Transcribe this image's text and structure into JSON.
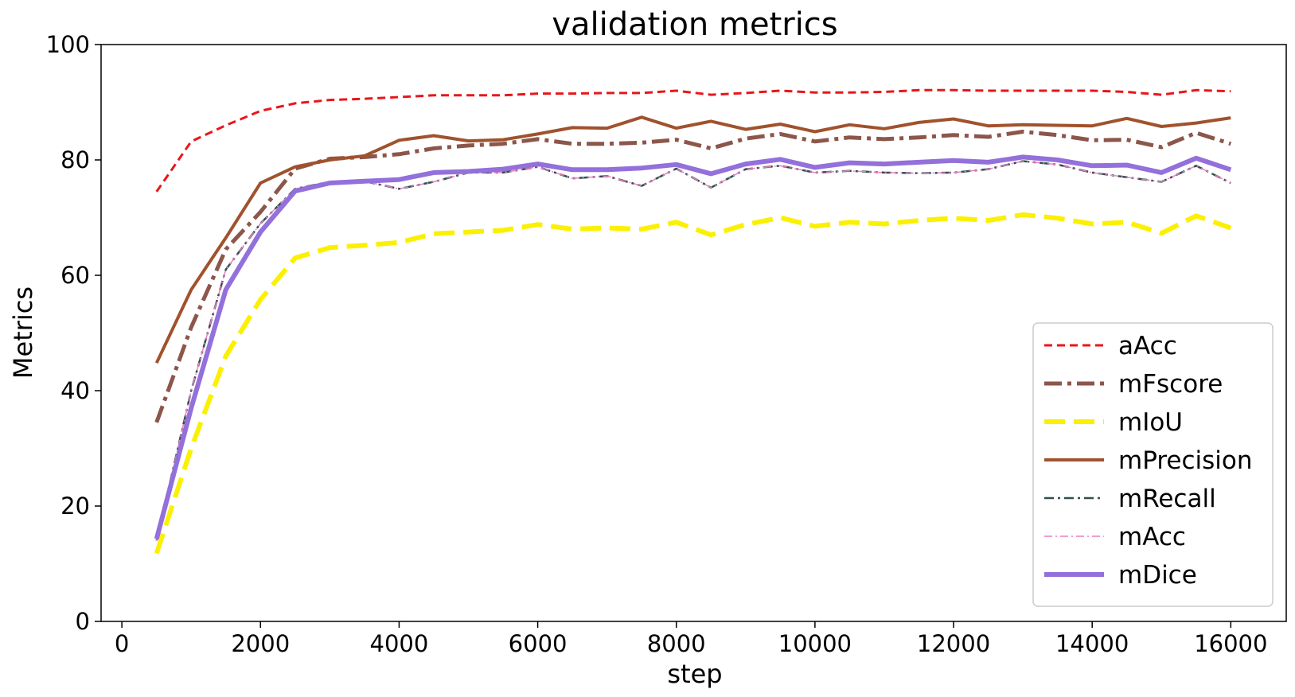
{
  "chart_data": {
    "type": "line",
    "title": "validation metrics",
    "xlabel": "step",
    "ylabel": "Metrics",
    "xlim": [
      -300,
      16800
    ],
    "ylim": [
      0,
      100
    ],
    "xticks": [
      0,
      2000,
      4000,
      6000,
      8000,
      10000,
      12000,
      14000,
      16000
    ],
    "yticks": [
      0,
      20,
      40,
      60,
      80,
      100
    ],
    "grid": false,
    "legend_position": "lower-right",
    "x": [
      500,
      1000,
      1500,
      2000,
      2500,
      3000,
      3500,
      4000,
      4500,
      5000,
      5500,
      6000,
      6500,
      7000,
      7500,
      8000,
      8500,
      9000,
      9500,
      10000,
      10500,
      11000,
      11500,
      12000,
      12500,
      13000,
      13500,
      14000,
      14500,
      15000,
      15500,
      16000
    ],
    "series": [
      {
        "name": "aAcc",
        "color": "#e8161b",
        "width": 3,
        "dash": "10,6",
        "values": [
          74.5,
          83.2,
          86.0,
          88.5,
          89.8,
          90.4,
          90.6,
          90.9,
          91.2,
          91.2,
          91.2,
          91.5,
          91.5,
          91.6,
          91.6,
          92.0,
          91.3,
          91.6,
          92.0,
          91.7,
          91.7,
          91.8,
          92.1,
          92.1,
          92.0,
          92.0,
          92.0,
          92.0,
          91.8,
          91.3,
          92.1,
          91.9
        ]
      },
      {
        "name": "mFscore",
        "color": "#8c564b",
        "width": 5,
        "dash": "22,7,5,7",
        "values": [
          34.5,
          51.0,
          64.5,
          71.0,
          78.5,
          80.2,
          80.5,
          81.0,
          82.0,
          82.5,
          82.8,
          83.6,
          82.8,
          82.8,
          83.0,
          83.5,
          82.0,
          83.7,
          84.5,
          83.2,
          83.9,
          83.6,
          83.9,
          84.3,
          84.0,
          84.9,
          84.3,
          83.4,
          83.5,
          82.2,
          84.7,
          82.8
        ]
      },
      {
        "name": "mIoU",
        "color": "#fbf000",
        "width": 6,
        "dash": "26,11",
        "values": [
          11.8,
          30.0,
          46.0,
          55.8,
          63.0,
          64.8,
          65.2,
          65.7,
          67.2,
          67.5,
          67.8,
          68.8,
          68.0,
          68.2,
          68.0,
          69.2,
          67.0,
          68.8,
          70.0,
          68.5,
          69.2,
          68.9,
          69.5,
          69.9,
          69.5,
          70.5,
          69.9,
          68.9,
          69.2,
          67.3,
          70.3,
          68.2
        ]
      },
      {
        "name": "mPrecision",
        "color": "#a0522d",
        "width": 4,
        "dash": "",
        "values": [
          44.8,
          57.5,
          66.5,
          76.0,
          78.8,
          80.0,
          80.7,
          83.4,
          84.2,
          83.3,
          83.5,
          84.5,
          85.6,
          85.5,
          87.4,
          85.5,
          86.7,
          85.3,
          86.2,
          84.9,
          86.1,
          85.4,
          86.5,
          87.1,
          85.9,
          86.1,
          86.0,
          85.9,
          87.2,
          85.8,
          86.4,
          87.3
        ]
      },
      {
        "name": "mRecall",
        "color": "#2f4f4f",
        "width": 2.5,
        "dash": "12,5,3,5",
        "values": [
          14.0,
          40.0,
          61.0,
          69.0,
          75.0,
          76.2,
          76.3,
          75.0,
          76.2,
          77.8,
          77.8,
          78.8,
          76.8,
          77.2,
          75.5,
          78.5,
          75.2,
          78.4,
          79.0,
          77.8,
          78.1,
          77.8,
          77.7,
          77.8,
          78.4,
          79.8,
          79.2,
          77.8,
          77.0,
          76.2,
          79.0,
          76.0
        ]
      },
      {
        "name": "mAcc",
        "color": "#ea7fc0",
        "width": 1.5,
        "dash": "10,4,2,4",
        "values": [
          14.0,
          40.0,
          61.0,
          69.0,
          75.0,
          76.2,
          76.3,
          75.0,
          76.2,
          77.8,
          77.8,
          78.8,
          76.8,
          77.2,
          75.5,
          78.5,
          75.2,
          78.4,
          79.0,
          77.8,
          78.1,
          77.8,
          77.7,
          77.8,
          78.4,
          79.8,
          79.2,
          77.8,
          77.0,
          76.2,
          79.0,
          76.0
        ]
      },
      {
        "name": "mDice",
        "color": "#9370db",
        "width": 6,
        "dash": "",
        "values": [
          14.3,
          37.0,
          57.5,
          67.5,
          74.6,
          76.0,
          76.3,
          76.6,
          77.8,
          78.0,
          78.4,
          79.3,
          78.3,
          78.3,
          78.6,
          79.2,
          77.6,
          79.3,
          80.1,
          78.7,
          79.5,
          79.3,
          79.6,
          79.9,
          79.6,
          80.5,
          80.0,
          79.0,
          79.1,
          77.8,
          80.3,
          78.3
        ]
      }
    ]
  }
}
